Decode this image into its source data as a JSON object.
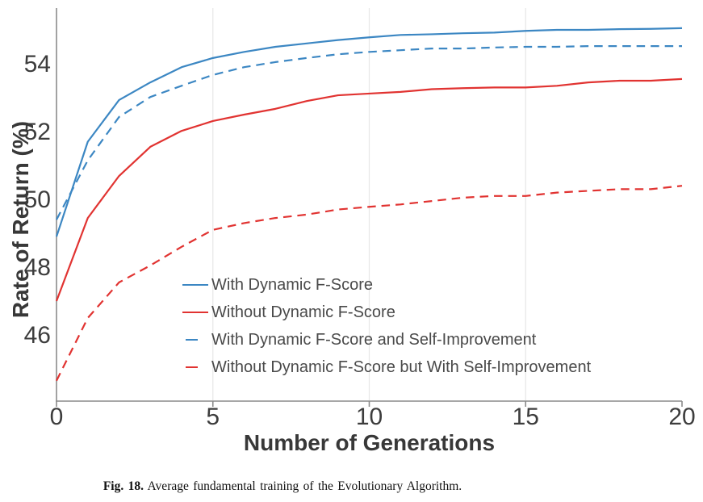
{
  "figure": {
    "caption_label": "Fig. 18.",
    "caption_text": "Average fundamental training of the Evolutionary Algorithm."
  },
  "chart_data": {
    "type": "line",
    "title": "",
    "xlabel": "Number of Generations",
    "ylabel": "Rate of Return (%)",
    "xlim": [
      0,
      20
    ],
    "ylim": [
      44.05,
      55.6
    ],
    "x_ticks": [
      0,
      5,
      10,
      15,
      20
    ],
    "y_ticks": [
      46,
      48,
      50,
      52,
      54
    ],
    "grid_x": [
      5,
      10,
      15
    ],
    "grid_on": "vertical-faint-only",
    "legend_position": "inside-lower-right",
    "x": [
      0,
      1,
      2,
      3,
      4,
      5,
      6,
      7,
      8,
      9,
      10,
      11,
      12,
      13,
      14,
      15,
      16,
      17,
      18,
      19,
      20
    ],
    "series": [
      {
        "name": "With Dynamic F-Score",
        "color": "#3c87c3",
        "style": "solid",
        "values": [
          48.9,
          51.7,
          52.93,
          53.45,
          53.9,
          54.17,
          54.35,
          54.5,
          54.6,
          54.7,
          54.78,
          54.85,
          54.87,
          54.9,
          54.92,
          54.97,
          55.0,
          55.0,
          55.02,
          55.03,
          55.05
        ]
      },
      {
        "name": "Without Dynamic F-Score",
        "color": "#e13331",
        "style": "solid",
        "values": [
          47.0,
          49.45,
          50.69,
          51.55,
          52.02,
          52.31,
          52.5,
          52.67,
          52.9,
          53.07,
          53.12,
          53.17,
          53.25,
          53.28,
          53.3,
          53.3,
          53.35,
          53.45,
          53.5,
          53.5,
          53.55
        ]
      },
      {
        "name": "With Dynamic F-Score and Self-Improvement",
        "color": "#3c87c3",
        "style": "dashed",
        "values": [
          49.4,
          51.15,
          52.43,
          53.02,
          53.35,
          53.67,
          53.9,
          54.05,
          54.17,
          54.28,
          54.35,
          54.4,
          54.45,
          54.45,
          54.48,
          54.5,
          54.5,
          54.52,
          54.52,
          54.52,
          54.52
        ]
      },
      {
        "name": "Without Dynamic F-Score but With Self-Improvement",
        "color": "#e13331",
        "style": "dashed",
        "values": [
          44.65,
          46.5,
          47.55,
          48.05,
          48.6,
          49.1,
          49.3,
          49.45,
          49.55,
          49.7,
          49.78,
          49.85,
          49.95,
          50.05,
          50.1,
          50.1,
          50.2,
          50.25,
          50.3,
          50.3,
          50.4
        ]
      }
    ]
  },
  "colors": {
    "blue_line": "#3c87c3",
    "red_line": "#e13331",
    "spine": "#8a8a8a",
    "gridline": "#e8e8e8",
    "tick_label": "#3d3d3d",
    "axis_title": "#383838",
    "legend_text": "#4a4a4a"
  }
}
